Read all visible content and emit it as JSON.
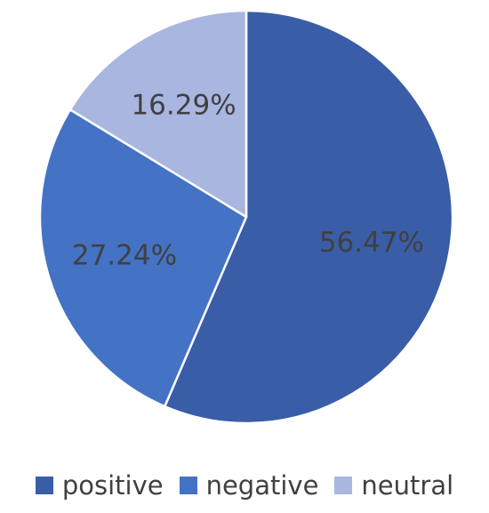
{
  "chart_data": {
    "type": "pie",
    "title": "",
    "categories": [
      "positive",
      "negative",
      "neutral"
    ],
    "values": [
      56.47,
      27.24,
      16.29
    ],
    "data_labels": [
      "56.47%",
      "27.24%",
      "16.29%"
    ],
    "colors": [
      "#3a5da8",
      "#4472c4",
      "#a9b6e0"
    ],
    "legend_position": "bottom",
    "start_angle_deg": 0,
    "direction": "clockwise"
  }
}
